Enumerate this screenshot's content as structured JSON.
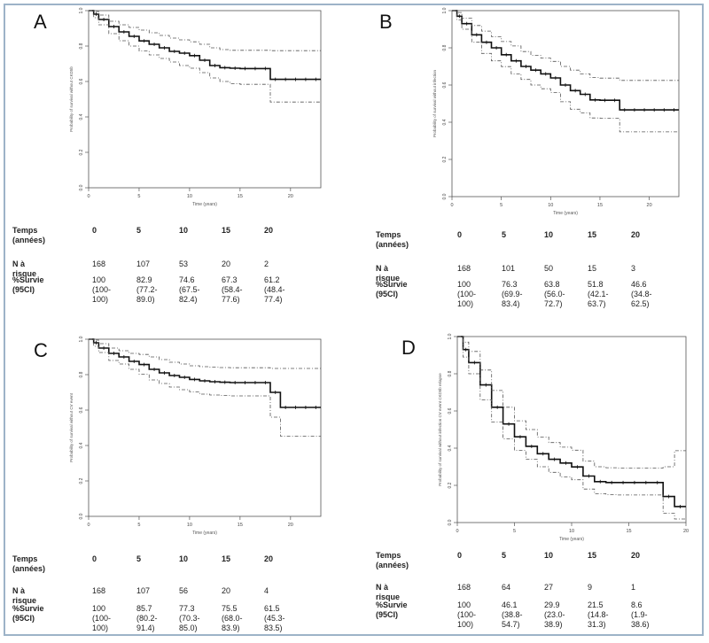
{
  "table_labels": {
    "time": "Temps\n(années)",
    "at_risk": "N à risque",
    "survival": "%Survie\n(95CI)"
  },
  "chart_data": [
    {
      "panel": "A",
      "type": "line",
      "xlabel": "Time (years)",
      "ylabel": "Probability of survival without CKD5b",
      "xlim": [
        0,
        23
      ],
      "ylim": [
        0,
        1
      ],
      "x_ticks": [
        0,
        5,
        10,
        15,
        20
      ],
      "y_ticks": [
        0.0,
        0.2,
        0.4,
        0.6,
        0.8,
        1.0
      ],
      "grid": false,
      "series": [
        {
          "role": "estimate",
          "x": [
            0,
            0.5,
            1,
            2,
            3,
            4,
            5,
            6,
            7,
            8,
            9,
            10,
            11,
            12,
            13,
            14,
            15,
            16,
            17,
            18,
            19,
            20,
            21,
            22,
            23
          ],
          "y": [
            1,
            0.98,
            0.95,
            0.91,
            0.88,
            0.855,
            0.829,
            0.81,
            0.79,
            0.77,
            0.76,
            0.746,
            0.72,
            0.69,
            0.678,
            0.675,
            0.673,
            0.673,
            0.673,
            0.612,
            0.612,
            0.612,
            0.612,
            0.612,
            0.612
          ]
        },
        {
          "role": "ci_upper",
          "x": [
            0,
            0.5,
            1,
            2,
            3,
            4,
            5,
            6,
            7,
            8,
            9,
            10,
            11,
            12,
            13,
            14,
            15,
            16,
            17,
            18,
            19,
            20,
            21,
            22,
            23
          ],
          "y": [
            1,
            0.995,
            0.975,
            0.94,
            0.92,
            0.905,
            0.89,
            0.875,
            0.86,
            0.845,
            0.835,
            0.824,
            0.81,
            0.79,
            0.78,
            0.776,
            0.776,
            0.776,
            0.776,
            0.774,
            0.774,
            0.774,
            0.774,
            0.774,
            0.774
          ]
        },
        {
          "role": "ci_lower",
          "x": [
            0,
            0.5,
            1,
            2,
            3,
            4,
            5,
            6,
            7,
            8,
            9,
            10,
            11,
            12,
            13,
            14,
            15,
            16,
            17,
            18,
            19,
            20,
            21,
            22,
            23
          ],
          "y": [
            1,
            0.96,
            0.92,
            0.87,
            0.83,
            0.8,
            0.772,
            0.75,
            0.73,
            0.71,
            0.69,
            0.675,
            0.65,
            0.62,
            0.6,
            0.588,
            0.584,
            0.584,
            0.584,
            0.484,
            0.484,
            0.484,
            0.484,
            0.484,
            0.484
          ]
        }
      ],
      "risk_table": {
        "times": [
          "0",
          "5",
          "10",
          "15",
          "20"
        ],
        "at_risk": [
          "168",
          "107",
          "53",
          "20",
          "2"
        ],
        "survival": [
          "100\n(100-\n100)",
          "82.9\n(77.2-\n89.0)",
          "74.6\n(67.5-\n82.4)",
          "67.3\n(58.4-\n77.6)",
          "61.2\n(48.4-\n77.4)"
        ]
      }
    },
    {
      "panel": "B",
      "type": "line",
      "xlabel": "Time (years)",
      "ylabel": "Probability of survival without infection",
      "xlim": [
        0,
        23
      ],
      "ylim": [
        0,
        1
      ],
      "x_ticks": [
        0,
        5,
        10,
        15,
        20
      ],
      "y_ticks": [
        0.0,
        0.2,
        0.4,
        0.6,
        0.8,
        1.0
      ],
      "grid": false,
      "series": [
        {
          "role": "estimate",
          "x": [
            0,
            0.5,
            1,
            2,
            3,
            4,
            5,
            6,
            7,
            8,
            9,
            10,
            11,
            12,
            13,
            14,
            15,
            16,
            17,
            18,
            19,
            20,
            21,
            22,
            23
          ],
          "y": [
            1,
            0.97,
            0.93,
            0.87,
            0.83,
            0.8,
            0.763,
            0.73,
            0.7,
            0.68,
            0.66,
            0.638,
            0.6,
            0.57,
            0.55,
            0.52,
            0.518,
            0.518,
            0.466,
            0.466,
            0.466,
            0.466,
            0.466,
            0.466,
            0.466
          ]
        },
        {
          "role": "ci_upper",
          "x": [
            0,
            0.5,
            1,
            2,
            3,
            4,
            5,
            6,
            7,
            8,
            9,
            10,
            11,
            12,
            13,
            14,
            15,
            16,
            17,
            18,
            19,
            20,
            21,
            22,
            23
          ],
          "y": [
            1,
            0.99,
            0.96,
            0.92,
            0.89,
            0.86,
            0.834,
            0.81,
            0.78,
            0.76,
            0.745,
            0.727,
            0.7,
            0.68,
            0.66,
            0.64,
            0.637,
            0.637,
            0.625,
            0.625,
            0.625,
            0.625,
            0.625,
            0.625,
            0.625
          ]
        },
        {
          "role": "ci_lower",
          "x": [
            0,
            0.5,
            1,
            2,
            3,
            4,
            5,
            6,
            7,
            8,
            9,
            10,
            11,
            12,
            13,
            14,
            15,
            16,
            17,
            18,
            19,
            20,
            21,
            22,
            23
          ],
          "y": [
            1,
            0.95,
            0.9,
            0.83,
            0.77,
            0.73,
            0.699,
            0.66,
            0.63,
            0.6,
            0.58,
            0.56,
            0.51,
            0.47,
            0.45,
            0.423,
            0.421,
            0.421,
            0.348,
            0.348,
            0.348,
            0.348,
            0.348,
            0.348,
            0.348
          ]
        }
      ],
      "risk_table": {
        "times": [
          "0",
          "5",
          "10",
          "15",
          "20"
        ],
        "at_risk": [
          "168",
          "101",
          "50",
          "15",
          "3"
        ],
        "survival": [
          "100\n(100-\n100)",
          "76.3\n(69.9-\n83.4)",
          "63.8\n(56.0-\n72.7)",
          "51.8\n(42.1-\n63.7)",
          "46.6\n(34.8-\n62.5)"
        ]
      }
    },
    {
      "panel": "C",
      "type": "line",
      "xlabel": "Time (years)",
      "ylabel": "Probability of survival without CV event",
      "xlim": [
        0,
        23
      ],
      "ylim": [
        0,
        1
      ],
      "x_ticks": [
        0,
        5,
        10,
        15,
        20
      ],
      "y_ticks": [
        0.0,
        0.2,
        0.4,
        0.6,
        0.8,
        1.0
      ],
      "grid": false,
      "series": [
        {
          "role": "estimate",
          "x": [
            0,
            0.5,
            1,
            2,
            3,
            4,
            5,
            6,
            7,
            8,
            9,
            10,
            11,
            12,
            13,
            14,
            15,
            16,
            17,
            18,
            19,
            20,
            21,
            22,
            23
          ],
          "y": [
            1,
            0.98,
            0.95,
            0.92,
            0.9,
            0.875,
            0.857,
            0.83,
            0.81,
            0.795,
            0.785,
            0.773,
            0.765,
            0.76,
            0.757,
            0.755,
            0.755,
            0.755,
            0.755,
            0.7,
            0.615,
            0.615,
            0.615,
            0.615,
            0.615
          ]
        },
        {
          "role": "ci_upper",
          "x": [
            0,
            0.5,
            1,
            2,
            3,
            4,
            5,
            6,
            7,
            8,
            9,
            10,
            11,
            12,
            13,
            14,
            15,
            16,
            17,
            18,
            19,
            20,
            21,
            22,
            23
          ],
          "y": [
            1,
            0.995,
            0.975,
            0.95,
            0.935,
            0.92,
            0.914,
            0.9,
            0.885,
            0.87,
            0.86,
            0.85,
            0.845,
            0.842,
            0.84,
            0.839,
            0.839,
            0.839,
            0.839,
            0.835,
            0.835,
            0.835,
            0.835,
            0.835,
            0.835
          ]
        },
        {
          "role": "ci_lower",
          "x": [
            0,
            0.5,
            1,
            2,
            3,
            4,
            5,
            6,
            7,
            8,
            9,
            10,
            11,
            12,
            13,
            14,
            15,
            16,
            17,
            18,
            19,
            20,
            21,
            22,
            23
          ],
          "y": [
            1,
            0.96,
            0.925,
            0.88,
            0.86,
            0.83,
            0.802,
            0.77,
            0.75,
            0.73,
            0.715,
            0.703,
            0.69,
            0.685,
            0.682,
            0.68,
            0.68,
            0.68,
            0.68,
            0.56,
            0.453,
            0.453,
            0.453,
            0.453,
            0.453
          ]
        }
      ],
      "risk_table": {
        "times": [
          "0",
          "5",
          "10",
          "15",
          "20"
        ],
        "at_risk": [
          "168",
          "107",
          "56",
          "20",
          "4"
        ],
        "survival": [
          "100\n(100-\n100)",
          "85.7\n(80.2-\n91.4)",
          "77.3\n(70.3-\n85.0)",
          "75.5\n(68.0-\n83.9)",
          "61.5\n(45.3-\n83.5)"
        ]
      }
    },
    {
      "panel": "D",
      "type": "line",
      "xlabel": "Time (years)",
      "ylabel": "Probability of survival without infection CV event CKD5b relapse",
      "xlim": [
        0,
        20
      ],
      "ylim": [
        0,
        1
      ],
      "x_ticks": [
        0,
        5,
        10,
        15,
        20
      ],
      "y_ticks": [
        0.0,
        0.2,
        0.4,
        0.6,
        0.8,
        1.0
      ],
      "grid": false,
      "series": [
        {
          "role": "estimate",
          "x": [
            0,
            0.5,
            1,
            2,
            3,
            4,
            5,
            6,
            7,
            8,
            9,
            10,
            11,
            12,
            13,
            14,
            15,
            16,
            17,
            18,
            19,
            20
          ],
          "y": [
            1,
            0.93,
            0.86,
            0.74,
            0.62,
            0.53,
            0.461,
            0.41,
            0.37,
            0.34,
            0.32,
            0.299,
            0.25,
            0.22,
            0.215,
            0.215,
            0.215,
            0.215,
            0.215,
            0.14,
            0.086,
            0.086
          ]
        },
        {
          "role": "ci_upper",
          "x": [
            0,
            0.5,
            1,
            2,
            3,
            4,
            5,
            6,
            7,
            8,
            9,
            10,
            11,
            12,
            13,
            14,
            15,
            16,
            17,
            18,
            19,
            20
          ],
          "y": [
            1,
            0.97,
            0.92,
            0.82,
            0.71,
            0.62,
            0.547,
            0.5,
            0.46,
            0.43,
            0.405,
            0.389,
            0.33,
            0.3,
            0.295,
            0.293,
            0.293,
            0.293,
            0.293,
            0.3,
            0.386,
            0.386
          ]
        },
        {
          "role": "ci_lower",
          "x": [
            0,
            0.5,
            1,
            2,
            3,
            4,
            5,
            6,
            7,
            8,
            9,
            10,
            11,
            12,
            13,
            14,
            15,
            16,
            17,
            18,
            19,
            20
          ],
          "y": [
            1,
            0.89,
            0.8,
            0.66,
            0.54,
            0.45,
            0.388,
            0.34,
            0.3,
            0.27,
            0.245,
            0.23,
            0.18,
            0.155,
            0.15,
            0.148,
            0.148,
            0.148,
            0.148,
            0.05,
            0.019,
            0.019
          ]
        }
      ],
      "risk_table": {
        "times": [
          "0",
          "5",
          "10",
          "15",
          "20"
        ],
        "at_risk": [
          "168",
          "64",
          "27",
          "9",
          "1"
        ],
        "survival": [
          "100\n(100-\n100)",
          "46.1\n(38.8-\n54.7)",
          "29.9\n(23.0-\n38.9)",
          "21.5\n(14.8-\n31.3)",
          "8.6\n(1.9-\n38.6)"
        ]
      }
    }
  ]
}
